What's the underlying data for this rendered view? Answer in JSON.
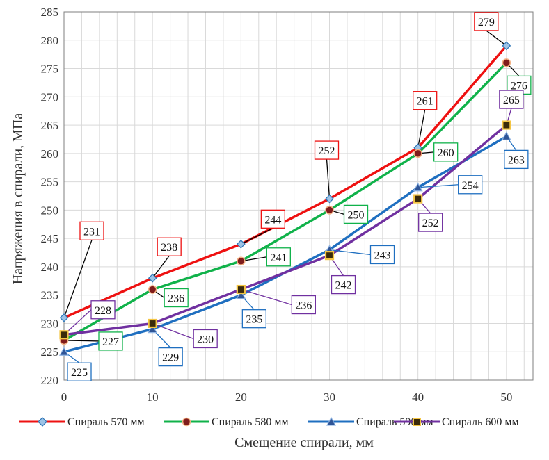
{
  "chart_data": {
    "type": "line",
    "xlabel": "Смещение спирали, мм",
    "ylabel": "Напряжения в спирали, МПа",
    "x": [
      0,
      10,
      20,
      30,
      40,
      50
    ],
    "xlim": [
      0,
      53
    ],
    "ylim": [
      220,
      285
    ],
    "x_ticks": [
      0,
      10,
      20,
      30,
      40,
      50
    ],
    "y_ticks": [
      220,
      225,
      230,
      235,
      240,
      245,
      250,
      255,
      260,
      265,
      270,
      275,
      280,
      285
    ],
    "grid": "vertical and horizontal",
    "legend_position": "bottom",
    "series": [
      {
        "name": "Спираль 570 мм",
        "color": "#ee1111",
        "marker": "diamond",
        "marker_fill": "#9dc3e6",
        "marker_stroke": "#2e75b6",
        "values": [
          231,
          238,
          244,
          252,
          261,
          279
        ],
        "data_labels": [
          "231",
          "238",
          "244",
          "252",
          "261",
          "279"
        ]
      },
      {
        "name": "Спираль 580 мм",
        "color": "#10b24a",
        "marker": "circle",
        "marker_fill": "#7f1c1c",
        "marker_stroke": "#f4b183",
        "values": [
          227,
          236,
          241,
          250,
          260,
          276
        ],
        "data_labels": [
          "227",
          "236",
          "241",
          "250",
          "260",
          "276"
        ]
      },
      {
        "name": "Спираль 590 мм",
        "color": "#1f6fc0",
        "marker": "triangle",
        "marker_fill": "#2f5597",
        "marker_stroke": "#8fb4e3",
        "values": [
          225,
          229,
          235,
          243,
          254,
          263
        ],
        "data_labels": [
          "225",
          "229",
          "235",
          "243",
          "254",
          "263"
        ]
      },
      {
        "name": "Спираль 600 мм",
        "color": "#7030a0",
        "marker": "square",
        "marker_fill": "#3a2a0a",
        "marker_stroke": "#f4c542",
        "values": [
          228,
          230,
          236,
          242,
          252,
          265
        ],
        "data_labels": [
          "228",
          "230",
          "236",
          "242",
          "252",
          "265"
        ]
      }
    ]
  }
}
